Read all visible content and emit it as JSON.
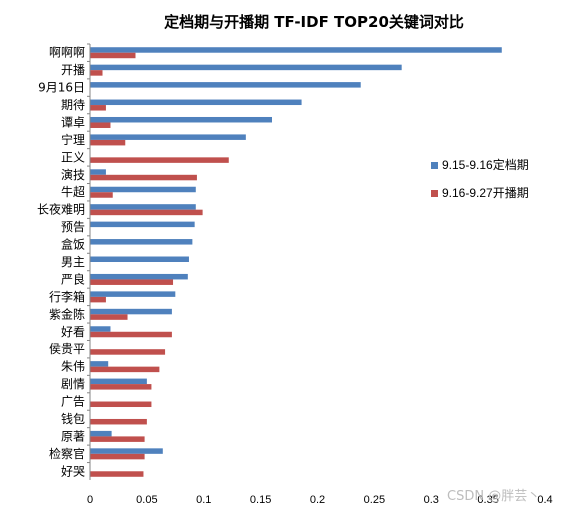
{
  "chart_data": {
    "type": "bar",
    "orientation": "horizontal",
    "title": "定档期与开播期 TF-IDF TOP20关键词对比",
    "xlabel": "",
    "ylabel": "",
    "xlim": [
      0,
      0.4
    ],
    "xticks": [
      "0",
      "0.05",
      "0.1",
      "0.15",
      "0.2",
      "0.25",
      "0.3",
      "0.35",
      "0.4"
    ],
    "grid": false,
    "legend_position": "right",
    "categories": [
      "啊啊啊",
      "开播",
      "9月16日",
      "期待",
      "谭卓",
      "宁理",
      "正义",
      "演技",
      "牛超",
      "长夜难明",
      "预告",
      "盒饭",
      "男主",
      "严良",
      "行李箱",
      "紫金陈",
      "好看",
      "侯贵平",
      "朱伟",
      "剧情",
      "广告",
      "钱包",
      "原著",
      "检察官",
      "好哭"
    ],
    "series": [
      {
        "name": "9.15-9.16定档期",
        "color": "#4f81bd",
        "values": [
          0.362,
          0.274,
          0.238,
          0.186,
          0.16,
          0.137,
          0,
          0.014,
          0.093,
          0.093,
          0.092,
          0.09,
          0.087,
          0.086,
          0.075,
          0.072,
          0.018,
          0,
          0.016,
          0.05,
          0,
          0,
          0.019,
          0.064,
          0
        ]
      },
      {
        "name": "9.16-9.27开播期",
        "color": "#c0504d",
        "values": [
          0.04,
          0.011,
          0,
          0.014,
          0.018,
          0.031,
          0.122,
          0.094,
          0.02,
          0.099,
          0,
          0,
          0,
          0.073,
          0.014,
          0.033,
          0.072,
          0.066,
          0.061,
          0.054,
          0.054,
          0.05,
          0.048,
          0.048,
          0.047
        ]
      }
    ]
  },
  "watermark": "CSDN @胖芸丶"
}
